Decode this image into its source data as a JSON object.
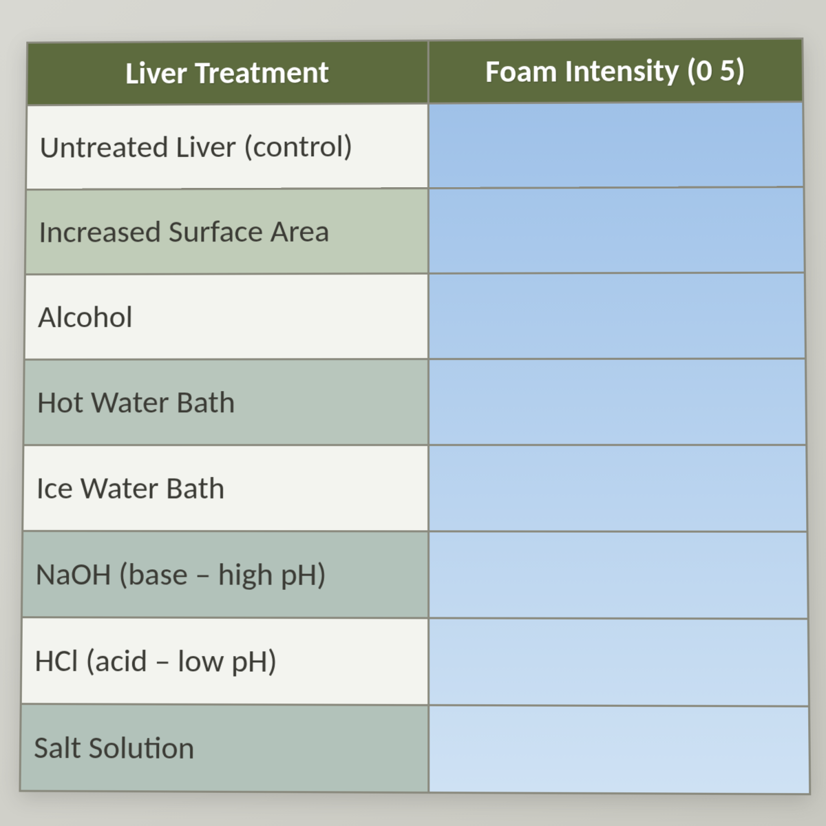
{
  "table": {
    "columns": [
      "Liver Treatment",
      "Foam Intensity (0 5)"
    ],
    "header_bg": "#5d6b3e",
    "header_text_color": "#ffffff",
    "border_color": "#8a8a7e",
    "label_font_size_pt": 34,
    "header_font_size_pt": 34,
    "rows": [
      {
        "label": "Untreated Liver (control)",
        "value": "",
        "label_bg": "#f3f4ef",
        "value_bg": "#9fc1e8"
      },
      {
        "label": "Increased Surface Area",
        "value": "",
        "label_bg": "#c0ccb8",
        "value_bg": "#a4c5ea"
      },
      {
        "label": "Alcohol",
        "value": "",
        "label_bg": "#f3f4ef",
        "value_bg": "#aac9eb"
      },
      {
        "label": "Hot Water Bath",
        "value": "",
        "label_bg": "#b8c6bc",
        "value_bg": "#b0cdec"
      },
      {
        "label": "Ice Water Bath",
        "value": "",
        "label_bg": "#f3f4ef",
        "value_bg": "#b6d1ee"
      },
      {
        "label": "NaOH (base – high pH)",
        "value": "",
        "label_bg": "#b2c2ba",
        "value_bg": "#bcd5ef"
      },
      {
        "label": "HCl (acid – low pH)",
        "value": "",
        "label_bg": "#f3f4ef",
        "value_bg": "#c2d9f0"
      },
      {
        "label": "Salt Solution",
        "value": "",
        "label_bg": "#b2c2ba",
        "value_bg": "#c8ddf2"
      }
    ]
  }
}
